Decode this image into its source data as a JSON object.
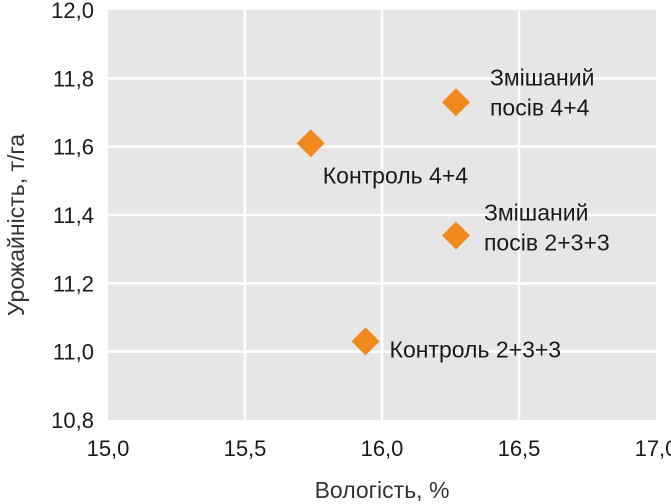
{
  "chart_data": {
    "type": "scatter",
    "xlabel": "Вологість, %",
    "ylabel": "Урожайність, т/га",
    "xlim": [
      15.0,
      17.0
    ],
    "ylim": [
      10.8,
      12.0
    ],
    "x_ticks": [
      "15,0",
      "15,5",
      "16,0",
      "16,5",
      "17,0"
    ],
    "y_ticks": [
      "10,8",
      "11,0",
      "11,2",
      "11,4",
      "11,6",
      "11,8",
      "12,0"
    ],
    "grid": true,
    "background_color": "#e6e6e6",
    "grid_color": "#ffffff",
    "marker": "diamond",
    "marker_color": "#f08a1e",
    "points": [
      {
        "x": 16.27,
        "y": 11.73,
        "label_lines": [
          "Змішаний",
          "посів 4+4"
        ]
      },
      {
        "x": 15.74,
        "y": 11.61,
        "label_lines": [
          "Контроль 4+4"
        ]
      },
      {
        "x": 16.27,
        "y": 11.34,
        "label_lines": [
          "Змішаний",
          "посів 2+3+3"
        ]
      },
      {
        "x": 15.94,
        "y": 11.03,
        "label_lines": [
          "Контроль 2+3+3"
        ]
      }
    ]
  }
}
